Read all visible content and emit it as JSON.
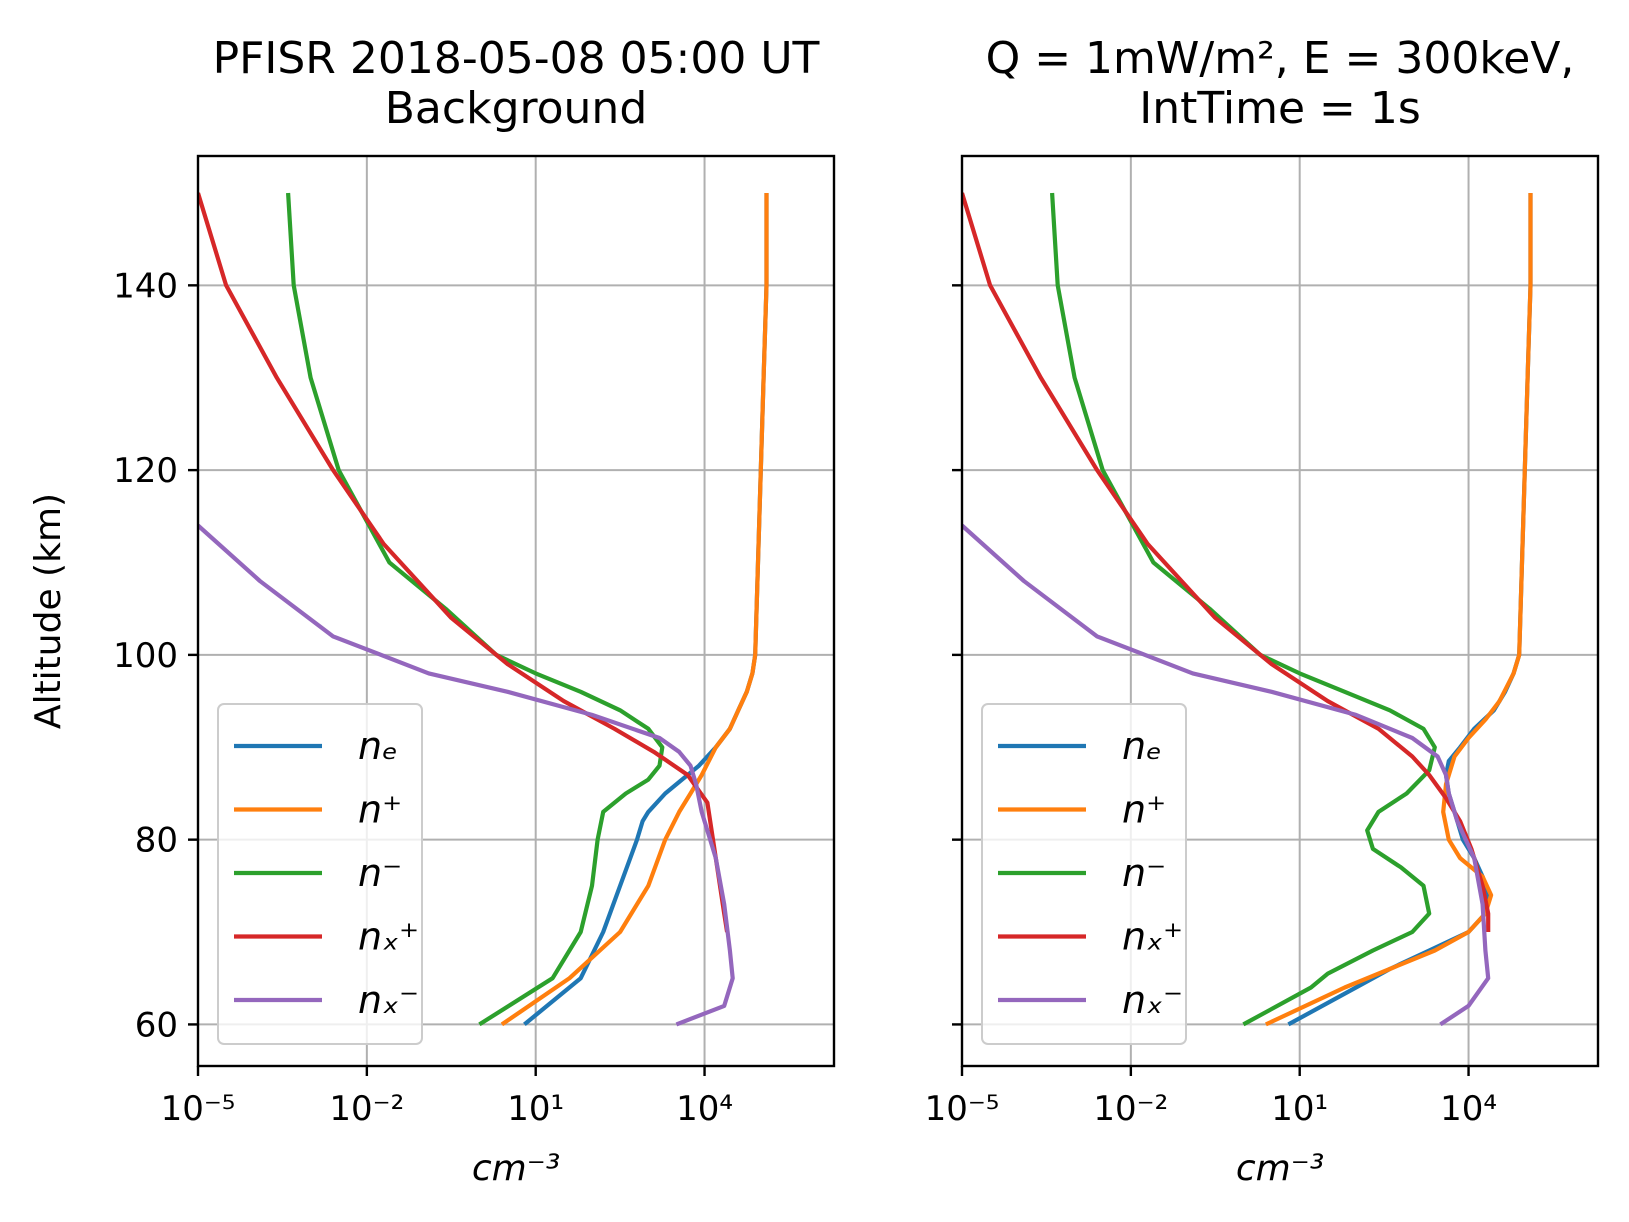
{
  "chart_data": [
    {
      "type": "line",
      "title_lines": [
        "PFISR 2018-05-08 05:00 UT",
        "Background"
      ],
      "xlabel": "cm⁻³",
      "ylabel": "Altitude (km)",
      "xscale": "log",
      "xlim_exp": [
        -5,
        6.3
      ],
      "ylim": [
        55.5,
        154
      ],
      "xticks": [
        {
          "exp": -5,
          "label": "10⁻⁵"
        },
        {
          "exp": -2,
          "label": "10⁻²"
        },
        {
          "exp": 1,
          "label": "10¹"
        },
        {
          "exp": 4,
          "label": "10⁴"
        }
      ],
      "yticks": [
        60,
        80,
        100,
        120,
        140
      ],
      "legend_location": "lower left",
      "grid": true,
      "series": [
        {
          "name": "n_e",
          "legend": "nₑ",
          "color": "#1f77b4",
          "points": [
            [
              0.8,
              60
            ],
            [
              1.8,
              65
            ],
            [
              2.2,
              70
            ],
            [
              2.5,
              75
            ],
            [
              2.8,
              80
            ],
            [
              2.9,
              82
            ],
            [
              3.0,
              83
            ],
            [
              3.3,
              85
            ],
            [
              3.6,
              86.5
            ],
            [
              3.9,
              88
            ],
            [
              4.2,
              90
            ],
            [
              4.45,
              92
            ],
            [
              4.6,
              94
            ],
            [
              4.75,
              96
            ],
            [
              4.85,
              98
            ],
            [
              4.9,
              100
            ],
            [
              4.95,
              110
            ],
            [
              5.0,
              120
            ],
            [
              5.05,
              130
            ],
            [
              5.1,
              140
            ],
            [
              5.1,
              150
            ]
          ]
        },
        {
          "name": "n+",
          "legend": "n⁺",
          "color": "#ff7f0e",
          "points": [
            [
              0.4,
              60
            ],
            [
              1.6,
              65
            ],
            [
              2.5,
              70
            ],
            [
              3.0,
              75
            ],
            [
              3.3,
              80
            ],
            [
              3.55,
              83
            ],
            [
              3.75,
              85
            ],
            [
              3.95,
              87
            ],
            [
              4.2,
              90
            ],
            [
              4.45,
              92
            ],
            [
              4.6,
              94
            ],
            [
              4.75,
              96
            ],
            [
              4.85,
              98
            ],
            [
              4.9,
              100
            ],
            [
              4.95,
              110
            ],
            [
              5.0,
              120
            ],
            [
              5.05,
              130
            ],
            [
              5.1,
              140
            ],
            [
              5.1,
              150
            ]
          ]
        },
        {
          "name": "n-",
          "legend": "n⁻",
          "color": "#2ca02c",
          "points": [
            [
              0.0,
              60
            ],
            [
              1.3,
              65
            ],
            [
              1.8,
              70
            ],
            [
              2.0,
              75
            ],
            [
              2.1,
              80
            ],
            [
              2.2,
              83
            ],
            [
              2.6,
              85
            ],
            [
              3.0,
              86.5
            ],
            [
              3.2,
              88
            ],
            [
              3.25,
              90
            ],
            [
              3.0,
              92
            ],
            [
              2.5,
              94
            ],
            [
              1.8,
              96
            ],
            [
              1.0,
              98
            ],
            [
              0.3,
              100
            ],
            [
              -0.6,
              105
            ],
            [
              -1.6,
              110
            ],
            [
              -2.5,
              120
            ],
            [
              -3.0,
              130
            ],
            [
              -3.3,
              140
            ],
            [
              -3.4,
              150
            ]
          ]
        },
        {
          "name": "n_x+",
          "legend": "nₓ⁺",
          "color": "#d62728",
          "points": [
            [
              -5.0,
              150
            ],
            [
              -4.5,
              140
            ],
            [
              -3.6,
              130
            ],
            [
              -2.6,
              120
            ],
            [
              -1.7,
              112
            ],
            [
              -0.5,
              104
            ],
            [
              0.5,
              99
            ],
            [
              1.5,
              95
            ],
            [
              2.4,
              92
            ],
            [
              3.1,
              89.5
            ],
            [
              3.7,
              87
            ],
            [
              4.05,
              84
            ],
            [
              4.15,
              80
            ],
            [
              4.25,
              76
            ],
            [
              4.35,
              72
            ],
            [
              4.4,
              70
            ]
          ]
        },
        {
          "name": "n_x-",
          "legend": "nₓ⁻",
          "color": "#9467bd",
          "points": [
            [
              -5.0,
              114
            ],
            [
              -3.9,
              108
            ],
            [
              -2.6,
              102
            ],
            [
              -0.9,
              98
            ],
            [
              0.5,
              96
            ],
            [
              2.0,
              93.5
            ],
            [
              3.2,
              91
            ],
            [
              3.55,
              89.5
            ],
            [
              3.75,
              88
            ],
            [
              3.85,
              86
            ],
            [
              3.95,
              83
            ],
            [
              4.2,
              78
            ],
            [
              4.35,
              73
            ],
            [
              4.45,
              68
            ],
            [
              4.5,
              65
            ],
            [
              4.35,
              62
            ],
            [
              3.5,
              60
            ]
          ]
        }
      ]
    },
    {
      "type": "line",
      "title_lines": [
        "Q = 1mW/m², E = 300keV,",
        "IntTime = 1s"
      ],
      "xlabel": "cm⁻³",
      "ylabel": "",
      "xscale": "log",
      "xlim_exp": [
        -5,
        6.3
      ],
      "ylim": [
        55.5,
        154
      ],
      "xticks": [
        {
          "exp": -5,
          "label": "10⁻⁵"
        },
        {
          "exp": -2,
          "label": "10⁻²"
        },
        {
          "exp": 1,
          "label": "10¹"
        },
        {
          "exp": 4,
          "label": "10⁴"
        }
      ],
      "yticks": [
        60,
        80,
        100,
        120,
        140
      ],
      "legend_location": "lower left",
      "grid": true,
      "series": [
        {
          "name": "n_e",
          "legend": "nₑ",
          "color": "#1f77b4",
          "points": [
            [
              0.8,
              60
            ],
            [
              2.0,
              64
            ],
            [
              2.6,
              66
            ],
            [
              3.3,
              68
            ],
            [
              4.0,
              70
            ],
            [
              4.3,
              72
            ],
            [
              4.35,
              74
            ],
            [
              4.25,
              76
            ],
            [
              4.1,
              78
            ],
            [
              3.9,
              80
            ],
            [
              3.75,
              83
            ],
            [
              3.65,
              85
            ],
            [
              3.6,
              87
            ],
            [
              3.65,
              88.5
            ],
            [
              3.85,
              90
            ],
            [
              4.1,
              92
            ],
            [
              4.45,
              94
            ],
            [
              4.65,
              96
            ],
            [
              4.8,
              98
            ],
            [
              4.9,
              100
            ],
            [
              4.95,
              110
            ],
            [
              5.0,
              120
            ],
            [
              5.05,
              130
            ],
            [
              5.1,
              140
            ],
            [
              5.1,
              150
            ]
          ]
        },
        {
          "name": "n+",
          "legend": "n⁺",
          "color": "#ff7f0e",
          "points": [
            [
              0.4,
              60
            ],
            [
              1.8,
              64
            ],
            [
              2.6,
              66
            ],
            [
              3.4,
              68
            ],
            [
              4.0,
              70
            ],
            [
              4.3,
              72
            ],
            [
              4.4,
              74
            ],
            [
              4.25,
              76
            ],
            [
              3.85,
              78
            ],
            [
              3.65,
              80
            ],
            [
              3.55,
              83
            ],
            [
              3.6,
              86
            ],
            [
              3.75,
              89
            ],
            [
              4.0,
              91
            ],
            [
              4.3,
              93
            ],
            [
              4.55,
              95
            ],
            [
              4.8,
              98
            ],
            [
              4.9,
              100
            ],
            [
              4.95,
              110
            ],
            [
              5.0,
              120
            ],
            [
              5.05,
              130
            ],
            [
              5.1,
              140
            ],
            [
              5.1,
              150
            ]
          ]
        },
        {
          "name": "n-",
          "legend": "n⁻",
          "color": "#2ca02c",
          "points": [
            [
              0.0,
              60
            ],
            [
              1.2,
              64
            ],
            [
              1.5,
              65.5
            ],
            [
              2.3,
              68
            ],
            [
              3.0,
              70
            ],
            [
              3.3,
              72
            ],
            [
              3.2,
              75
            ],
            [
              2.8,
              77
            ],
            [
              2.3,
              79
            ],
            [
              2.2,
              81
            ],
            [
              2.4,
              83
            ],
            [
              2.9,
              85
            ],
            [
              3.3,
              87.5
            ],
            [
              3.4,
              90
            ],
            [
              3.2,
              92
            ],
            [
              2.6,
              94
            ],
            [
              1.8,
              96
            ],
            [
              1.0,
              98
            ],
            [
              0.3,
              100
            ],
            [
              -0.6,
              105
            ],
            [
              -1.6,
              110
            ],
            [
              -2.5,
              120
            ],
            [
              -3.0,
              130
            ],
            [
              -3.3,
              140
            ],
            [
              -3.4,
              150
            ]
          ]
        },
        {
          "name": "n_x+",
          "legend": "nₓ⁺",
          "color": "#d62728",
          "points": [
            [
              -5.0,
              150
            ],
            [
              -4.5,
              140
            ],
            [
              -3.6,
              130
            ],
            [
              -2.6,
              120
            ],
            [
              -1.7,
              112
            ],
            [
              -0.5,
              104
            ],
            [
              0.5,
              99
            ],
            [
              1.5,
              95
            ],
            [
              2.4,
              92
            ],
            [
              3.0,
              89
            ],
            [
              3.3,
              87
            ],
            [
              3.6,
              84.5
            ],
            [
              3.85,
              82
            ],
            [
              4.05,
              79
            ],
            [
              4.25,
              75
            ],
            [
              4.35,
              72
            ],
            [
              4.35,
              70
            ]
          ]
        },
        {
          "name": "n_x-",
          "legend": "nₓ⁻",
          "color": "#9467bd",
          "points": [
            [
              -5.0,
              114
            ],
            [
              -3.9,
              108
            ],
            [
              -2.6,
              102
            ],
            [
              -0.9,
              98
            ],
            [
              0.5,
              96
            ],
            [
              2.0,
              93.5
            ],
            [
              3.0,
              91
            ],
            [
              3.45,
              89
            ],
            [
              3.6,
              87
            ],
            [
              3.65,
              85
            ],
            [
              3.8,
              82
            ],
            [
              4.1,
              78
            ],
            [
              4.25,
              73
            ],
            [
              4.3,
              68
            ],
            [
              4.35,
              65
            ],
            [
              4.0,
              62
            ],
            [
              3.5,
              60
            ]
          ]
        }
      ]
    }
  ]
}
